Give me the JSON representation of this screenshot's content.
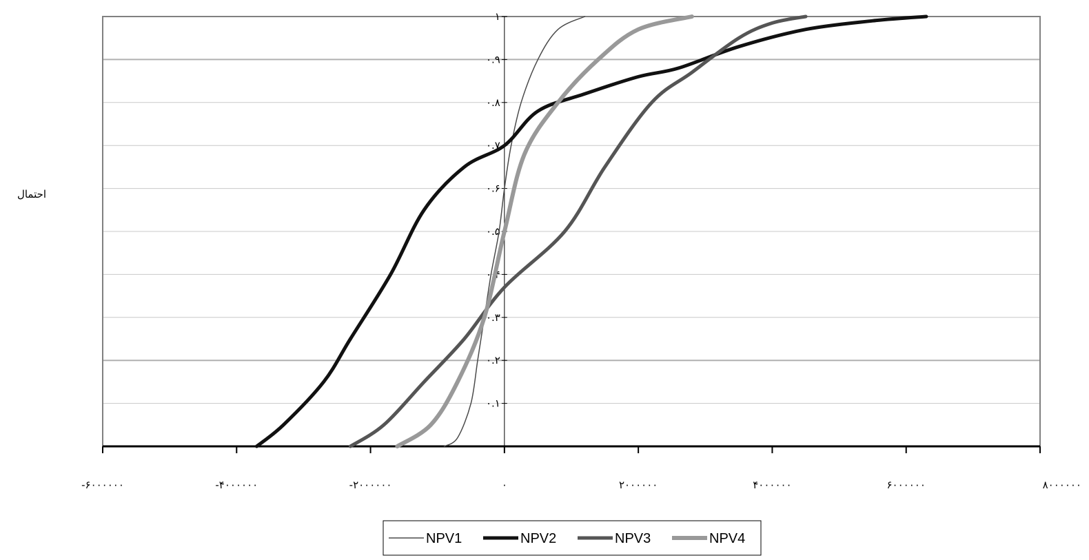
{
  "chart_data": {
    "type": "line",
    "title": "",
    "xlabel": "",
    "ylabel": "احتمال",
    "xlim": [
      -6000000,
      8000000
    ],
    "ylim": [
      0,
      1
    ],
    "x_ticks": [
      -6000000,
      -4000000,
      -2000000,
      0,
      2000000,
      4000000,
      6000000,
      8000000
    ],
    "x_tick_labels": [
      "-۶۰۰۰۰۰۰",
      "-۴۰۰۰۰۰۰",
      "-۲۰۰۰۰۰۰",
      "۰",
      "۲۰۰۰۰۰۰",
      "۴۰۰۰۰۰۰",
      "۶۰۰۰۰۰۰",
      "۸۰۰۰۰۰۰"
    ],
    "y_ticks": [
      0,
      0.1,
      0.2,
      0.3,
      0.4,
      0.5,
      0.6,
      0.7,
      0.8,
      0.9,
      1
    ],
    "y_tick_labels": [
      "۰",
      "۰.۱",
      "۰.۲",
      "۰.۳",
      "۰.۴",
      "۰.۵",
      "۰.۶",
      "۰.۷",
      "۰.۸",
      "۰.۹",
      "۱"
    ],
    "grid": true,
    "legend_position": "bottom",
    "series": [
      {
        "name": "NPV1",
        "color": "#4a4a4a",
        "points": [
          [
            -900000,
            0
          ],
          [
            -700000,
            0.02
          ],
          [
            -500000,
            0.1
          ],
          [
            -400000,
            0.2
          ],
          [
            -300000,
            0.3
          ],
          [
            -200000,
            0.4
          ],
          [
            -80000,
            0.5
          ],
          [
            0,
            0.6
          ],
          [
            100000,
            0.7
          ],
          [
            250000,
            0.8
          ],
          [
            500000,
            0.9
          ],
          [
            800000,
            0.97
          ],
          [
            1200000,
            1.0
          ]
        ]
      },
      {
        "name": "NPV2",
        "color": "#111111",
        "points": [
          [
            -3700000,
            0
          ],
          [
            -3300000,
            0.05
          ],
          [
            -2700000,
            0.15
          ],
          [
            -2300000,
            0.25
          ],
          [
            -1700000,
            0.4
          ],
          [
            -1200000,
            0.55
          ],
          [
            -600000,
            0.65
          ],
          [
            0,
            0.7
          ],
          [
            500000,
            0.78
          ],
          [
            1200000,
            0.82
          ],
          [
            2000000,
            0.86
          ],
          [
            2600000,
            0.88
          ],
          [
            3500000,
            0.93
          ],
          [
            4500000,
            0.97
          ],
          [
            5500000,
            0.99
          ],
          [
            6300000,
            1.0
          ]
        ]
      },
      {
        "name": "NPV3",
        "color": "#555555",
        "points": [
          [
            -2300000,
            0
          ],
          [
            -1800000,
            0.05
          ],
          [
            -1200000,
            0.15
          ],
          [
            -600000,
            0.25
          ],
          [
            0,
            0.37
          ],
          [
            900000,
            0.5
          ],
          [
            1500000,
            0.65
          ],
          [
            2200000,
            0.8
          ],
          [
            2800000,
            0.87
          ],
          [
            3500000,
            0.95
          ],
          [
            4000000,
            0.985
          ],
          [
            4500000,
            1.0
          ]
        ]
      },
      {
        "name": "NPV4",
        "color": "#999999",
        "points": [
          [
            -1600000,
            0
          ],
          [
            -1100000,
            0.05
          ],
          [
            -700000,
            0.15
          ],
          [
            -300000,
            0.3
          ],
          [
            0,
            0.5
          ],
          [
            300000,
            0.68
          ],
          [
            800000,
            0.8
          ],
          [
            1400000,
            0.9
          ],
          [
            2000000,
            0.97
          ],
          [
            2800000,
            1.0
          ]
        ]
      }
    ]
  }
}
